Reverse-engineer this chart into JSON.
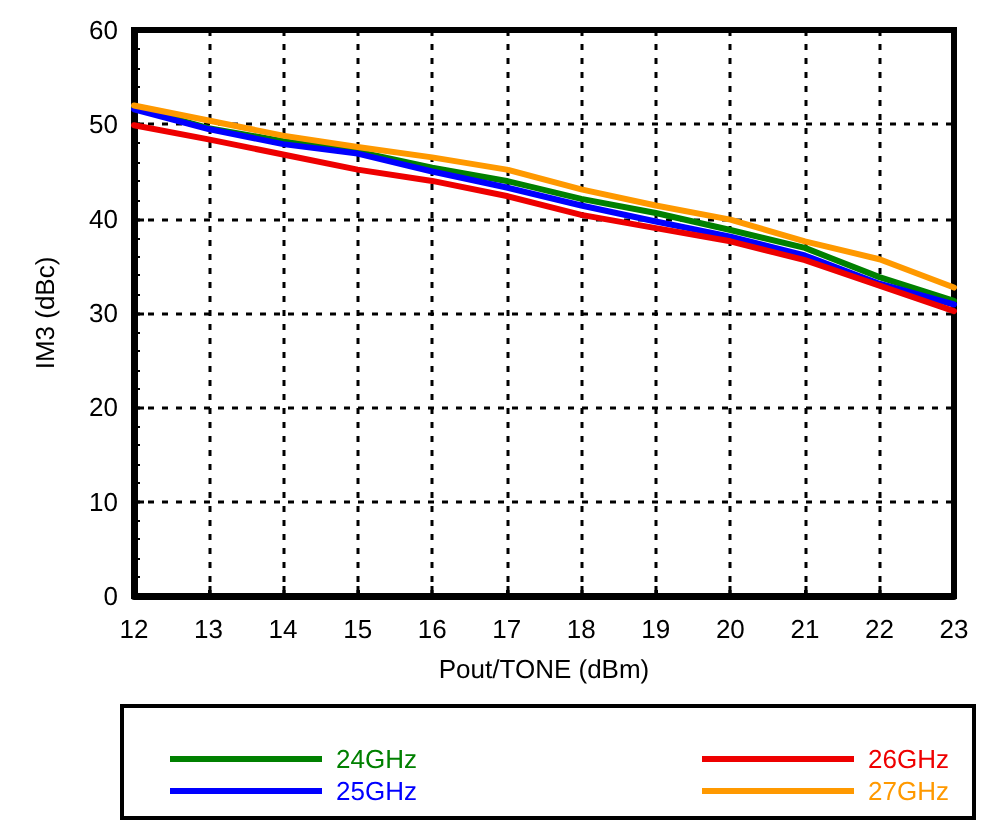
{
  "chart_data": {
    "type": "line",
    "xlabel": "Pout/TONE (dBm)",
    "ylabel": "IM3 (dBc)",
    "x": [
      12,
      13,
      14,
      15,
      16,
      17,
      18,
      19,
      20,
      21,
      22,
      23
    ],
    "series": [
      {
        "name": "24GHz",
        "color": "#008000",
        "values": [
          51.8,
          49.6,
          48.2,
          47.1,
          45.4,
          44.0,
          42.1,
          40.6,
          38.8,
          36.9,
          33.8,
          31.3
        ]
      },
      {
        "name": "25GHz",
        "color": "#0000ff",
        "values": [
          51.6,
          49.5,
          47.9,
          46.9,
          45.0,
          43.3,
          41.4,
          39.7,
          38.1,
          36.1,
          33.1,
          30.9
        ]
      },
      {
        "name": "26GHz",
        "color": "#ee0000",
        "values": [
          49.9,
          48.4,
          46.8,
          45.2,
          44.0,
          42.4,
          40.4,
          39.0,
          37.6,
          35.6,
          32.9,
          30.2
        ]
      },
      {
        "name": "27GHz",
        "color": "#ff9900",
        "values": [
          52.0,
          50.4,
          48.8,
          47.6,
          46.5,
          45.2,
          43.1,
          41.4,
          39.9,
          37.6,
          35.7,
          32.7
        ]
      }
    ],
    "xlim": [
      12,
      23
    ],
    "xticks": [
      12,
      13,
      14,
      15,
      16,
      17,
      18,
      19,
      20,
      21,
      22,
      23
    ],
    "ylim": [
      0,
      60
    ],
    "yticks": [
      0,
      10,
      20,
      30,
      40,
      50,
      60
    ],
    "grid": true,
    "legend": "bottom",
    "marker": "none",
    "line_style": "solid"
  }
}
